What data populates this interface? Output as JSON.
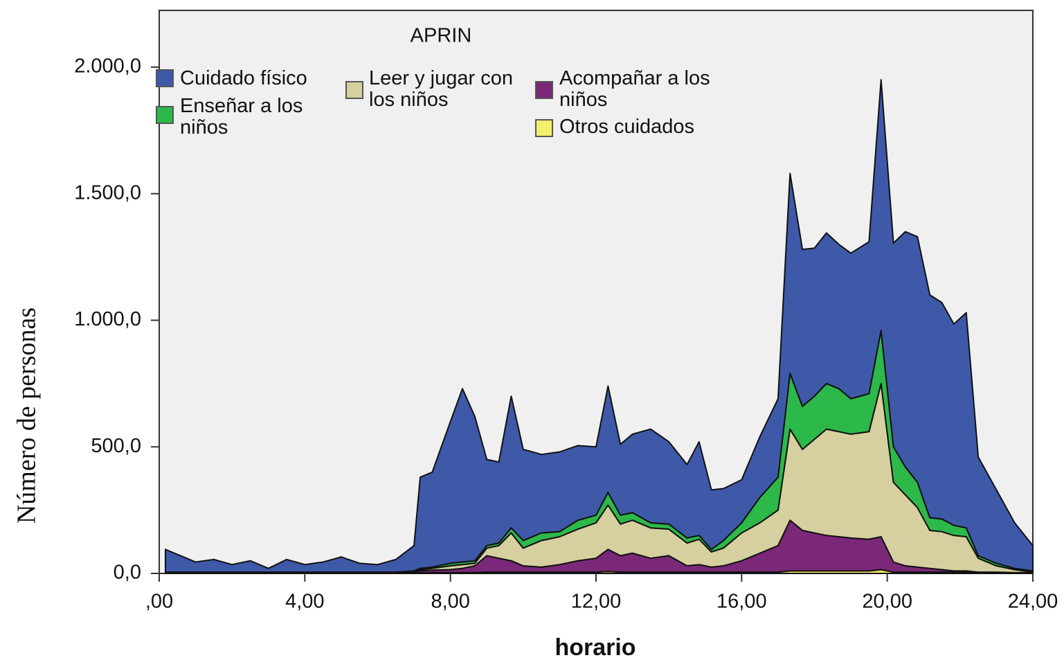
{
  "chart_data": {
    "type": "area",
    "stacked": true,
    "title": "APRIN",
    "xlabel": "horario",
    "ylabel": "Número de  personas",
    "x": [
      0.17,
      0.5,
      1.0,
      1.5,
      2.0,
      2.5,
      3.0,
      3.5,
      4.0,
      4.5,
      5.0,
      5.5,
      6.0,
      6.5,
      7.0,
      7.17,
      7.5,
      8.0,
      8.33,
      8.67,
      9.0,
      9.33,
      9.67,
      10.0,
      10.5,
      11.0,
      11.5,
      12.0,
      12.33,
      12.67,
      13.0,
      13.5,
      14.0,
      14.5,
      14.83,
      15.17,
      15.5,
      16.0,
      16.5,
      17.0,
      17.33,
      17.67,
      18.0,
      18.33,
      18.67,
      19.0,
      19.5,
      19.83,
      20.17,
      20.5,
      20.83,
      21.17,
      21.5,
      21.83,
      22.17,
      22.5,
      23.0,
      23.5,
      24.0
    ],
    "series": [
      {
        "name": "Cuidado físico",
        "color": "#3e59a8",
        "values": [
          90,
          70,
          40,
          50,
          30,
          45,
          15,
          50,
          30,
          40,
          60,
          35,
          30,
          50,
          100,
          360,
          375,
          560,
          685,
          570,
          340,
          320,
          520,
          360,
          310,
          315,
          295,
          270,
          420,
          280,
          310,
          370,
          325,
          290,
          370,
          235,
          205,
          170,
          240,
          310,
          790,
          620,
          585,
          595,
          570,
          575,
          600,
          990,
          805,
          930,
          970,
          880,
          855,
          795,
          850,
          390,
          290,
          180,
          100
        ]
      },
      {
        "name": "Enseñar a los niños",
        "color": "#2db84a",
        "values": [
          0,
          0,
          0,
          0,
          0,
          0,
          0,
          0,
          0,
          0,
          0,
          0,
          0,
          0,
          0,
          5,
          5,
          10,
          10,
          10,
          10,
          10,
          20,
          30,
          30,
          20,
          35,
          30,
          50,
          35,
          30,
          20,
          20,
          20,
          15,
          10,
          30,
          40,
          100,
          130,
          220,
          170,
          170,
          180,
          170,
          140,
          150,
          210,
          140,
          110,
          100,
          50,
          50,
          40,
          35,
          10,
          10,
          5,
          5
        ]
      },
      {
        "name": "Leer y jugar con los niños",
        "color": "#d6cf9f",
        "values": [
          0,
          0,
          0,
          0,
          0,
          0,
          0,
          0,
          0,
          0,
          0,
          0,
          0,
          0,
          3,
          5,
          7,
          15,
          15,
          10,
          30,
          50,
          110,
          70,
          105,
          110,
          125,
          140,
          175,
          125,
          130,
          120,
          105,
          90,
          100,
          60,
          70,
          110,
          120,
          140,
          360,
          320,
          370,
          420,
          415,
          410,
          425,
          605,
          315,
          280,
          235,
          150,
          150,
          140,
          135,
          55,
          25,
          12,
          2
        ]
      },
      {
        "name": "Acompañar a los niños",
        "color": "#7b2878",
        "values": [
          3,
          3,
          3,
          3,
          3,
          3,
          3,
          3,
          3,
          3,
          3,
          3,
          3,
          3,
          5,
          8,
          10,
          12,
          17,
          27,
          65,
          55,
          45,
          25,
          20,
          30,
          45,
          55,
          87,
          65,
          75,
          55,
          65,
          25,
          30,
          20,
          25,
          45,
          75,
          105,
          200,
          160,
          150,
          140,
          135,
          130,
          125,
          130,
          40,
          25,
          20,
          15,
          10,
          5,
          5,
          2,
          2,
          1,
          1
        ]
      },
      {
        "name": "Otros cuidados",
        "color": "#f3ef6b",
        "values": [
          2,
          2,
          2,
          2,
          2,
          2,
          2,
          2,
          2,
          2,
          2,
          2,
          2,
          2,
          2,
          2,
          3,
          3,
          3,
          3,
          5,
          5,
          5,
          5,
          5,
          5,
          5,
          5,
          8,
          5,
          5,
          5,
          5,
          5,
          5,
          5,
          5,
          5,
          5,
          5,
          10,
          10,
          10,
          10,
          10,
          10,
          10,
          15,
          5,
          5,
          5,
          5,
          5,
          5,
          5,
          3,
          3,
          2,
          2
        ]
      }
    ],
    "xlim": [
      0,
      24
    ],
    "ylim": [
      0,
      2224
    ],
    "xticks": [
      {
        "value": 0,
        "label": ",00"
      },
      {
        "value": 4,
        "label": "4,00"
      },
      {
        "value": 8,
        "label": "8,00"
      },
      {
        "value": 12,
        "label": "12,00"
      },
      {
        "value": 16,
        "label": "16,00"
      },
      {
        "value": 20,
        "label": "20,00"
      },
      {
        "value": 24,
        "label": "24,00"
      }
    ],
    "yticks": [
      {
        "value": 0,
        "label": "0,0"
      },
      {
        "value": 500,
        "label": "500,0"
      },
      {
        "value": 1000,
        "label": "1.000,0"
      },
      {
        "value": 1500,
        "label": "1.500,0"
      },
      {
        "value": 2000,
        "label": "2.000,0"
      }
    ]
  }
}
